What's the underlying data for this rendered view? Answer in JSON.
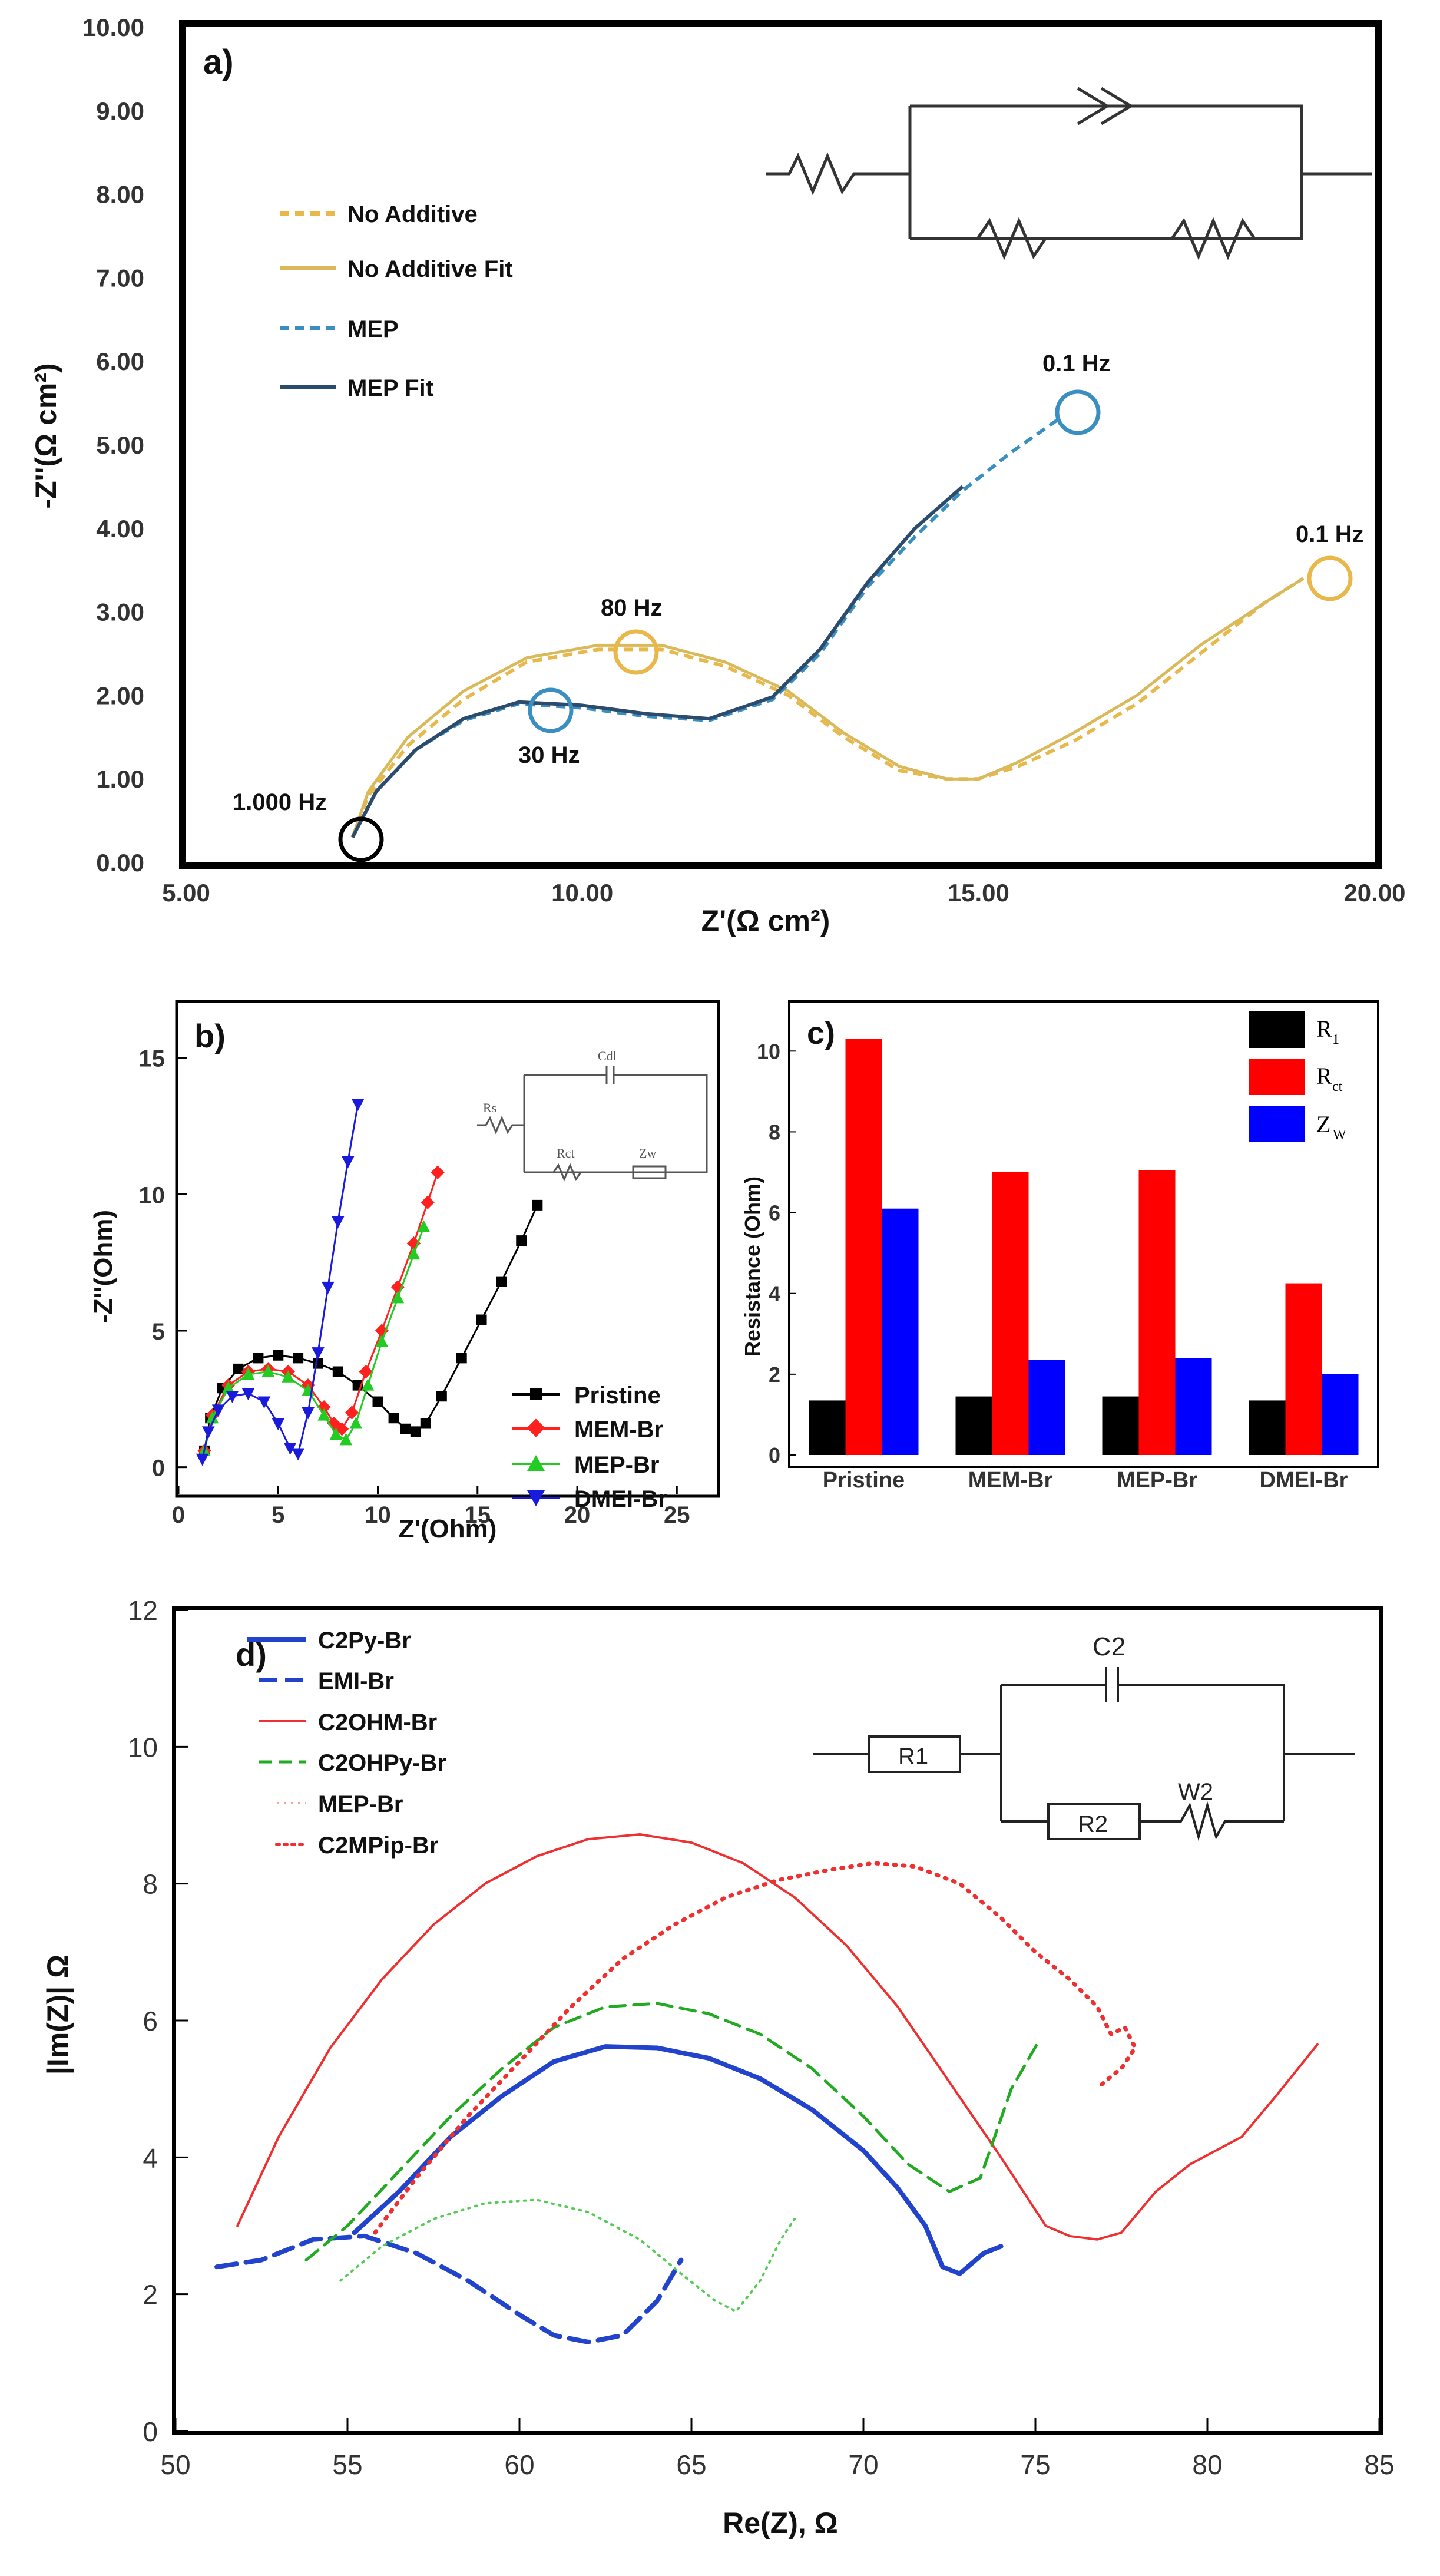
{
  "chart_data": [
    {
      "id": "a",
      "type": "line",
      "panel_label": "a)",
      "xlabel": "Z'(Ω cm²)",
      "ylabel": "-Z''(Ω cm²)",
      "xlim": [
        5,
        20
      ],
      "ylim": [
        0,
        10
      ],
      "xticks": [
        "5.00",
        "10.00",
        "15.00",
        "20.00"
      ],
      "yticks": [
        "0.00",
        "1.00",
        "2.00",
        "3.00",
        "4.00",
        "5.00",
        "6.00",
        "7.00",
        "8.00",
        "9.00",
        "10.00"
      ],
      "legend": [
        "No Additive",
        "No Additive Fit",
        "MEP",
        "MEP Fit"
      ],
      "colors": {
        "no_additive": "#e8b84a",
        "no_additive_fit": "#d9b95a",
        "mep": "#3a8fc0",
        "mep_fit": "#2c4c6e"
      },
      "annotations": [
        "1.000 Hz",
        "30 Hz",
        "80 Hz",
        "0.1 Hz",
        "0.1 Hz"
      ],
      "series": [
        {
          "name": "No Additive",
          "x": [
            7.1,
            7.3,
            7.8,
            8.5,
            9.3,
            10.2,
            11.0,
            11.8,
            12.6,
            13.3,
            14.0,
            14.6,
            15.0,
            15.5,
            16.2,
            17.0,
            17.8,
            18.6,
            19.1
          ],
          "y": [
            0.3,
            0.8,
            1.4,
            1.95,
            2.4,
            2.55,
            2.55,
            2.35,
            2.0,
            1.5,
            1.1,
            1.0,
            1.0,
            1.15,
            1.45,
            1.9,
            2.5,
            3.1,
            3.4
          ]
        },
        {
          "name": "No Additive Fit",
          "x": [
            7.1,
            7.3,
            7.8,
            8.5,
            9.3,
            10.2,
            11.0,
            11.8,
            12.6,
            13.3,
            14.0,
            14.6,
            15.0,
            15.5,
            16.2,
            17.0,
            17.8,
            18.6,
            19.1
          ],
          "y": [
            0.3,
            0.85,
            1.5,
            2.05,
            2.45,
            2.6,
            2.6,
            2.4,
            2.05,
            1.55,
            1.15,
            1.0,
            1.0,
            1.2,
            1.55,
            2.0,
            2.6,
            3.1,
            3.4
          ]
        },
        {
          "name": "MEP",
          "x": [
            7.1,
            7.4,
            7.9,
            8.5,
            9.2,
            10.0,
            10.8,
            11.6,
            12.4,
            13.0,
            13.6,
            14.2,
            14.8,
            15.4,
            16.0
          ],
          "y": [
            0.3,
            0.85,
            1.35,
            1.7,
            1.9,
            1.85,
            1.75,
            1.7,
            1.95,
            2.5,
            3.3,
            3.9,
            4.45,
            4.9,
            5.3
          ]
        },
        {
          "name": "MEP Fit",
          "x": [
            7.1,
            7.4,
            7.9,
            8.5,
            9.2,
            10.0,
            10.8,
            11.6,
            12.4,
            13.0,
            13.6,
            14.2,
            14.8
          ],
          "y": [
            0.3,
            0.85,
            1.35,
            1.72,
            1.92,
            1.88,
            1.78,
            1.72,
            1.98,
            2.55,
            3.35,
            4.0,
            4.5
          ]
        }
      ]
    },
    {
      "id": "b",
      "type": "scatter",
      "panel_label": "b)",
      "xlabel": "Z'(Ohm)",
      "ylabel": "-Z''(Ohm)",
      "xlim": [
        0,
        27
      ],
      "ylim": [
        -1,
        17
      ],
      "xticks": [
        "0",
        "5",
        "10",
        "15",
        "20",
        "25"
      ],
      "yticks": [
        "0",
        "5",
        "10",
        "15"
      ],
      "legend": [
        "Pristine",
        "MEM-Br",
        "MEP-Br",
        "DMEI-Br"
      ],
      "circuit_labels": [
        "Cdl",
        "Rs",
        "Rct",
        "Zw"
      ],
      "colors": {
        "pristine": "#000000",
        "mem": "#ff2020",
        "mep": "#22cc22",
        "dmei": "#1a1adc"
      },
      "series": [
        {
          "name": "Pristine",
          "x": [
            1.3,
            1.6,
            2.2,
            3.0,
            4.0,
            5.0,
            6.0,
            7.0,
            8.0,
            9.0,
            10.0,
            10.8,
            11.4,
            11.9,
            12.4,
            13.2,
            14.2,
            15.2,
            16.2,
            17.2,
            18.0
          ],
          "y": [
            0.6,
            1.8,
            2.9,
            3.6,
            4.0,
            4.1,
            4.0,
            3.8,
            3.5,
            3.0,
            2.4,
            1.8,
            1.4,
            1.3,
            1.6,
            2.6,
            4.0,
            5.4,
            6.8,
            8.3,
            9.6
          ]
        },
        {
          "name": "MEM-Br",
          "x": [
            1.3,
            1.7,
            2.5,
            3.5,
            4.5,
            5.5,
            6.5,
            7.3,
            7.8,
            8.2,
            8.7,
            9.4,
            10.2,
            11.0,
            11.8,
            12.5,
            13.0
          ],
          "y": [
            0.6,
            1.9,
            3.0,
            3.5,
            3.6,
            3.5,
            3.0,
            2.2,
            1.6,
            1.4,
            2.0,
            3.5,
            5.0,
            6.6,
            8.2,
            9.7,
            10.8
          ]
        },
        {
          "name": "MEP-Br",
          "x": [
            1.3,
            1.7,
            2.5,
            3.5,
            4.5,
            5.5,
            6.5,
            7.3,
            7.9,
            8.4,
            8.9,
            9.5,
            10.2,
            11.0,
            11.8,
            12.3
          ],
          "y": [
            0.6,
            1.8,
            2.9,
            3.4,
            3.5,
            3.3,
            2.8,
            1.9,
            1.2,
            1.0,
            1.6,
            3.0,
            4.6,
            6.2,
            7.8,
            8.8
          ]
        },
        {
          "name": "DMEI-Br",
          "x": [
            1.2,
            1.5,
            2.0,
            2.7,
            3.5,
            4.3,
            5.0,
            5.6,
            6.0,
            6.5,
            7.0,
            7.5,
            8.0,
            8.5,
            9.0
          ],
          "y": [
            0.3,
            1.3,
            2.1,
            2.6,
            2.7,
            2.4,
            1.6,
            0.7,
            0.5,
            2.0,
            4.2,
            6.6,
            9.0,
            11.2,
            13.3
          ]
        }
      ]
    },
    {
      "id": "c",
      "type": "bar",
      "panel_label": "c)",
      "ylabel": "Resistance (Ohm)",
      "ylim": [
        0,
        11.2
      ],
      "yticks": [
        "0",
        "2",
        "4",
        "6",
        "8",
        "10"
      ],
      "categories": [
        "Pristine",
        "MEM-Br",
        "MEP-Br",
        "DMEI-Br"
      ],
      "legend": [
        "R",
        "R",
        "Z"
      ],
      "legend_subscripts": [
        "1",
        "ct",
        "W"
      ],
      "colors": {
        "r1": "#000000",
        "rct": "#ff0000",
        "zw": "#0000ff"
      },
      "series": [
        {
          "name": "R1",
          "values": [
            1.35,
            1.45,
            1.45,
            1.35
          ]
        },
        {
          "name": "Rct",
          "values": [
            10.3,
            7.0,
            7.05,
            4.25
          ]
        },
        {
          "name": "Zw",
          "values": [
            6.1,
            2.35,
            2.4,
            2.0
          ]
        }
      ]
    },
    {
      "id": "d",
      "type": "line",
      "panel_label": "d)",
      "xlabel": "Re(Z), Ω",
      "ylabel": "|Im(Z)| Ω",
      "xlim": [
        50,
        85
      ],
      "ylim": [
        0,
        12
      ],
      "xticks": [
        "50",
        "55",
        "60",
        "65",
        "70",
        "75",
        "80",
        "85"
      ],
      "yticks": [
        "0",
        "2",
        "4",
        "6",
        "8",
        "10",
        "12"
      ],
      "legend": [
        "C2Py-Br",
        "EMI-Br",
        "C2OHM-Br",
        "C2OHPy-Br",
        "MEP-Br",
        "C2MPip-Br"
      ],
      "circuit_labels": [
        "C2",
        "R1",
        "R2",
        "W2"
      ],
      "colors": {
        "c2py": "#2244cc",
        "emi": "#2244cc",
        "c2ohm": "#ee3030",
        "c2ohpy": "#22aa22",
        "mep": "#55cc55",
        "c2mpip": "#ee3030"
      },
      "series": [
        {
          "name": "C2Py-Br",
          "x": [
            55.2,
            56.5,
            58.0,
            59.5,
            61.0,
            62.5,
            64.0,
            65.5,
            67.0,
            68.5,
            70.0,
            71.0,
            71.8,
            72.3,
            72.8,
            73.5,
            74.0
          ],
          "y": [
            2.9,
            3.5,
            4.3,
            4.9,
            5.4,
            5.62,
            5.6,
            5.45,
            5.15,
            4.7,
            4.1,
            3.55,
            3.0,
            2.4,
            2.3,
            2.6,
            2.7
          ]
        },
        {
          "name": "EMI-Br",
          "x": [
            51.2,
            52.5,
            54.0,
            55.5,
            57.0,
            58.5,
            60.0,
            61.0,
            62.0,
            63.0,
            64.0,
            64.7
          ],
          "y": [
            2.4,
            2.5,
            2.8,
            2.85,
            2.6,
            2.2,
            1.7,
            1.4,
            1.3,
            1.4,
            1.9,
            2.5
          ]
        },
        {
          "name": "C2OHM-Br",
          "x": [
            51.8,
            53.0,
            54.5,
            56.0,
            57.5,
            59.0,
            60.5,
            62.0,
            63.5,
            65.0,
            66.5,
            68.0,
            69.5,
            71.0,
            72.5,
            74.0,
            75.3,
            76.0,
            76.8,
            77.5,
            78.5,
            79.5,
            81.0,
            82.0,
            83.2
          ],
          "y": [
            3.0,
            4.3,
            5.6,
            6.6,
            7.4,
            8.0,
            8.4,
            8.65,
            8.72,
            8.6,
            8.3,
            7.8,
            7.1,
            6.2,
            5.1,
            4.0,
            3.0,
            2.85,
            2.8,
            2.9,
            3.5,
            3.9,
            4.3,
            4.9,
            5.65
          ]
        },
        {
          "name": "C2OHPy-Br",
          "x": [
            53.8,
            55.0,
            56.5,
            58.0,
            59.5,
            61.0,
            62.5,
            64.0,
            65.5,
            67.0,
            68.5,
            70.0,
            71.3,
            72.5,
            73.4,
            74.3,
            75.1
          ],
          "y": [
            2.5,
            3.0,
            3.8,
            4.6,
            5.3,
            5.9,
            6.2,
            6.25,
            6.1,
            5.8,
            5.3,
            4.6,
            3.9,
            3.5,
            3.7,
            5.0,
            5.7
          ]
        },
        {
          "name": "MEP-Br",
          "x": [
            54.8,
            56.0,
            57.5,
            59.0,
            60.5,
            62.0,
            63.5,
            64.7,
            65.7,
            66.3,
            67.0,
            67.6,
            68.0
          ],
          "y": [
            2.2,
            2.7,
            3.1,
            3.33,
            3.38,
            3.2,
            2.8,
            2.3,
            1.9,
            1.75,
            2.2,
            2.8,
            3.1
          ]
        },
        {
          "name": "C2MPip-Br",
          "x": [
            55.8,
            57.0,
            58.5,
            60.0,
            61.5,
            63.0,
            64.5,
            66.0,
            67.5,
            69.0,
            70.3,
            71.5,
            72.8,
            74.0,
            75.0,
            76.0,
            76.8,
            77.2,
            77.6,
            77.9,
            77.5,
            77.0,
            76.8
          ],
          "y": [
            2.9,
            3.7,
            4.6,
            5.4,
            6.2,
            6.9,
            7.4,
            7.8,
            8.05,
            8.2,
            8.3,
            8.25,
            8.0,
            7.5,
            7.0,
            6.6,
            6.2,
            5.8,
            5.9,
            5.6,
            5.3,
            5.1,
            5.0
          ]
        }
      ]
    }
  ]
}
